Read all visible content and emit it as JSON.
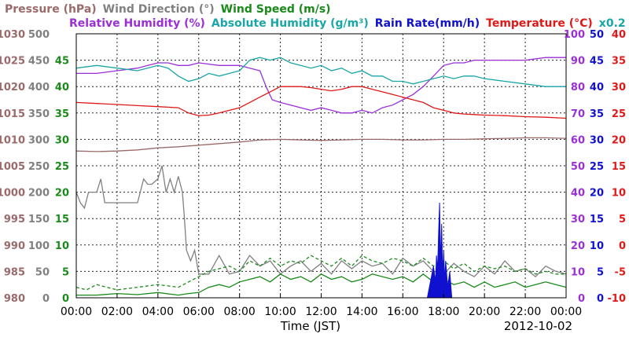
{
  "chart_data": {
    "type": "line",
    "date": "2012-10-02",
    "xlabel": "Time (JST)",
    "legend": {
      "row1": [
        {
          "text": "Pressure (hPa)",
          "color": "#9b6a6a"
        },
        {
          "text": "Wind Direction (°)",
          "color": "#808080"
        },
        {
          "text": "Wind Speed (m/s)",
          "color": "#1a8a1a"
        }
      ],
      "row2": [
        {
          "text": "Relative Humidity (%)",
          "color": "#9b2fd6"
        },
        {
          "text": "Absolute Humidity (g/m³)",
          "color": "#1aa6a6"
        },
        {
          "text": "Rain Rate(mm/h)",
          "color": "#1010d0"
        },
        {
          "text": "Temperature (°C)",
          "color": "#e01818"
        },
        {
          "text": "x0.2",
          "color": "#1aa6a6"
        }
      ]
    },
    "x_ticks": [
      "00:00",
      "02:00",
      "04:00",
      "06:00",
      "08:00",
      "10:00",
      "12:00",
      "14:00",
      "16:00",
      "18:00",
      "20:00",
      "22:00",
      "00:00"
    ],
    "axes": {
      "pressure": {
        "ticks": [
          "1030",
          "1025",
          "1020",
          "1015",
          "1010",
          "1005",
          "1000",
          "995",
          "990",
          "985",
          "980"
        ],
        "range": [
          980,
          1030
        ],
        "color": "#9b6a6a"
      },
      "wind_direction": {
        "ticks": [
          "500",
          "450",
          "400",
          "350",
          "300",
          "250",
          "200",
          "150",
          "100",
          "50",
          "0"
        ],
        "range": [
          0,
          500
        ],
        "color": "#808080"
      },
      "wind_speed": {
        "ticks": [
          "45",
          "40",
          "35",
          "30",
          "25",
          "20",
          "15",
          "10",
          "5",
          "0"
        ],
        "range": [
          0,
          50
        ],
        "color": "#1a8a1a"
      },
      "humidity": {
        "ticks": [
          "100",
          "90",
          "80",
          "70",
          "60",
          "50",
          "40",
          "30",
          "20",
          "10",
          "0"
        ],
        "range": [
          0,
          100
        ],
        "color": "#9b2fd6"
      },
      "rain_rate": {
        "ticks": [
          "50",
          "45",
          "40",
          "35",
          "30",
          "25",
          "20",
          "15",
          "10",
          "5",
          "0"
        ],
        "range": [
          0,
          50
        ],
        "color": "#1010d0"
      },
      "temperature": {
        "ticks": [
          "40",
          "35",
          "30",
          "25",
          "20",
          "15",
          "10",
          "5",
          "0",
          "-5",
          "-10"
        ],
        "range": [
          -10,
          40
        ],
        "color": "#e01818"
      }
    },
    "x_range_hours": [
      0,
      24
    ],
    "series": [
      {
        "name": "Relative Humidity (%)",
        "axis": "humidity",
        "color": "#9b2fd6",
        "x": [
          0,
          1,
          2,
          3,
          3.5,
          4,
          4.5,
          5,
          5.5,
          6,
          7,
          8,
          8.5,
          9,
          9.3,
          9.6,
          10,
          10.5,
          11,
          11.5,
          12,
          12.5,
          13,
          13.5,
          14,
          14.5,
          15,
          15.5,
          16,
          16.5,
          17,
          17.5,
          18,
          18.5,
          19,
          19.5,
          20,
          21,
          22,
          23,
          24
        ],
        "y": [
          85,
          85,
          86,
          87,
          88,
          89,
          89,
          88,
          88,
          89,
          88,
          88,
          87,
          86,
          80,
          75,
          74,
          73,
          72,
          71,
          72,
          71,
          70,
          70,
          71,
          70,
          72,
          73,
          75,
          77,
          80,
          84,
          88,
          89,
          89,
          90,
          90,
          90,
          90,
          91,
          91
        ]
      },
      {
        "name": "Absolute Humidity (g/m³)",
        "axis": "humidity",
        "color": "#1aa6a6",
        "x": [
          0,
          1,
          2,
          3,
          4,
          4.5,
          5,
          5.5,
          6,
          6.5,
          7,
          7.5,
          8,
          8.5,
          9,
          9.5,
          10,
          10.5,
          11,
          11.5,
          12,
          12.5,
          13,
          13.5,
          14,
          14.5,
          15,
          15.5,
          16,
          16.5,
          17,
          17.5,
          18,
          18.5,
          19,
          19.5,
          20,
          21,
          22,
          23,
          24
        ],
        "y": [
          87,
          88,
          87,
          86,
          88,
          87,
          84,
          82,
          83,
          85,
          84,
          85,
          86,
          90,
          91,
          90,
          91,
          89,
          88,
          87,
          88,
          86,
          87,
          85,
          86,
          84,
          84,
          82,
          82,
          81,
          82,
          83,
          84,
          83,
          84,
          84,
          83,
          82,
          81,
          80,
          80
        ]
      },
      {
        "name": "Temperature (°C)",
        "axis": "temperature",
        "color": "#e01818",
        "x": [
          0,
          1,
          2,
          3,
          4,
          5,
          5.5,
          6,
          6.5,
          7,
          7.5,
          8,
          8.5,
          9,
          9.5,
          10,
          10.5,
          11,
          11.5,
          12,
          12.5,
          13,
          13.5,
          14,
          14.5,
          15,
          15.5,
          16,
          16.5,
          17,
          17.5,
          18,
          18.5,
          19,
          19.5,
          20,
          21,
          22,
          23,
          24
        ],
        "y": [
          27,
          26.8,
          26.6,
          26.4,
          26.2,
          26,
          25,
          24.5,
          24.6,
          25,
          25.5,
          26,
          27,
          28,
          29,
          30,
          30,
          30,
          29.8,
          29.5,
          29.2,
          29.5,
          30,
          30,
          29.5,
          29,
          28.5,
          28,
          27.5,
          27,
          26,
          25.5,
          25,
          24.8,
          24.7,
          24.6,
          24.5,
          24.3,
          24.2,
          24
        ]
      },
      {
        "name": "Pressure (hPa)",
        "axis": "pressure",
        "color": "#9b6a6a",
        "x": [
          0,
          1,
          2,
          3,
          4,
          5,
          6,
          7,
          8,
          9,
          10,
          11,
          12,
          13,
          14,
          15,
          16,
          17,
          18,
          19,
          20,
          21,
          22,
          23,
          24
        ],
        "y": [
          1007.8,
          1007.7,
          1007.8,
          1008,
          1008.4,
          1008.6,
          1008.9,
          1009.2,
          1009.5,
          1009.9,
          1010,
          1009.9,
          1009.8,
          1009.9,
          1010,
          1010,
          1009.9,
          1009.9,
          1010,
          1010,
          1010.1,
          1010.2,
          1010.3,
          1010.3,
          1010.2
        ]
      },
      {
        "name": "Wind Direction (°)",
        "axis": "wind_direction",
        "color": "#808080",
        "x": [
          0,
          0.2,
          0.4,
          0.6,
          0.8,
          1,
          1.2,
          1.4,
          1.6,
          2,
          2.5,
          3,
          3.3,
          3.5,
          3.7,
          4,
          4.2,
          4.4,
          4.6,
          4.8,
          5,
          5.2,
          5.3,
          5.4,
          5.6,
          5.8,
          6,
          6.5,
          7,
          7.5,
          8,
          8.5,
          9,
          9.5,
          10,
          10.5,
          11,
          11.5,
          12,
          12.5,
          13,
          13.5,
          14,
          14.5,
          15,
          15.5,
          16,
          16.5,
          17,
          17.5,
          18,
          18.5,
          19,
          19.5,
          20,
          20.5,
          21,
          21.5,
          22,
          22.5,
          23,
          23.5,
          24
        ],
        "y": [
          200,
          180,
          170,
          200,
          200,
          200,
          225,
          180,
          180,
          180,
          180,
          180,
          225,
          215,
          215,
          225,
          250,
          200,
          225,
          200,
          230,
          200,
          150,
          90,
          70,
          90,
          45,
          45,
          80,
          45,
          50,
          80,
          60,
          70,
          45,
          60,
          70,
          50,
          65,
          45,
          70,
          55,
          70,
          60,
          65,
          45,
          75,
          60,
          70,
          50,
          45,
          65,
          50,
          40,
          60,
          45,
          70,
          50,
          55,
          40,
          60,
          50,
          45
        ]
      },
      {
        "name": "Wind Speed (m/s)",
        "axis": "wind_speed",
        "color": "#1a8a1a",
        "style": "solid",
        "x": [
          0,
          1,
          2,
          3,
          4,
          5,
          5.5,
          6,
          6.5,
          7,
          7.5,
          8,
          8.5,
          9,
          9.5,
          10,
          10.5,
          11,
          11.5,
          12,
          12.5,
          13,
          13.5,
          14,
          14.5,
          15,
          15.5,
          16,
          16.5,
          17,
          17.5,
          18,
          18.5,
          19,
          19.5,
          20,
          20.5,
          21,
          21.5,
          22,
          22.5,
          23,
          23.5,
          24
        ],
        "y": [
          0.5,
          0.5,
          0.8,
          0.6,
          1,
          0.5,
          0.8,
          1,
          2,
          2.5,
          2,
          3,
          3.5,
          4,
          3,
          4.5,
          3.5,
          4,
          3,
          4.5,
          3.5,
          4,
          3,
          3.5,
          4.5,
          4,
          3.5,
          4,
          3,
          4.5,
          3,
          3.5,
          2.5,
          3,
          2,
          3,
          2,
          2.5,
          3,
          2,
          2.5,
          3,
          2.5,
          2
        ]
      },
      {
        "name": "Wind Speed max (m/s)",
        "axis": "wind_speed",
        "color": "#1a8a1a",
        "style": "dashed",
        "x": [
          0,
          0.5,
          1,
          1.5,
          2,
          3,
          4,
          5,
          5.5,
          6,
          6.5,
          7,
          7.5,
          8,
          8.5,
          9,
          9.5,
          10,
          10.5,
          11,
          11.5,
          12,
          12.5,
          13,
          13.5,
          14,
          14.5,
          15,
          15.5,
          16,
          16.5,
          17,
          17.5,
          18,
          18.5,
          19,
          19.5,
          20,
          20.5,
          21,
          21.5,
          22,
          22.5,
          23,
          23.5,
          24
        ],
        "y": [
          2,
          1.5,
          2.5,
          2,
          1.5,
          2,
          2.5,
          2,
          3,
          4,
          5,
          5.5,
          6,
          5,
          7,
          6,
          7.5,
          6,
          7,
          6.5,
          8,
          7,
          6,
          7.5,
          6,
          8,
          7,
          6.5,
          7.5,
          7,
          6,
          7.5,
          6,
          7,
          5.5,
          6.5,
          5,
          6,
          5.5,
          6,
          5,
          5.5,
          4.5,
          5,
          4.5,
          4.5
        ]
      },
      {
        "name": "Rain Rate(mm/h)",
        "axis": "rain_rate",
        "color": "#1010d0",
        "style": "fill",
        "x": [
          17.2,
          17.3,
          17.4,
          17.5,
          17.6,
          17.65,
          17.7,
          17.75,
          17.8,
          17.85,
          17.9,
          17.95,
          18,
          18.05,
          18.1,
          18.2,
          18.3,
          18.4
        ],
        "y": [
          0,
          2,
          4,
          6,
          3,
          8,
          5,
          12,
          18,
          6,
          14,
          4,
          9,
          3,
          7,
          2,
          5,
          0
        ]
      }
    ]
  }
}
